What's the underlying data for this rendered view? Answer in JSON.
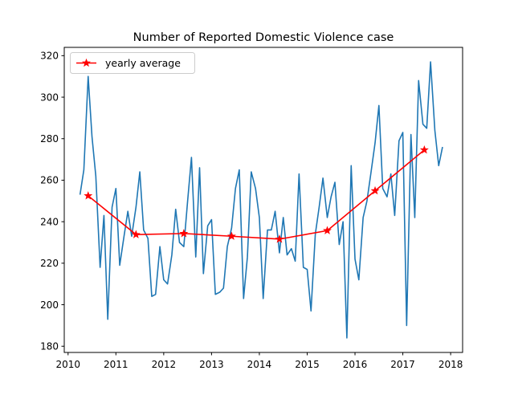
{
  "chart_data": {
    "type": "line",
    "title": "Number of Reported Domestic Violence case",
    "xlabel": "",
    "ylabel": "",
    "xlim": [
      2009.92,
      2018.25
    ],
    "ylim": [
      177,
      324
    ],
    "x_ticks": [
      2010,
      2011,
      2012,
      2013,
      2014,
      2015,
      2016,
      2017,
      2018
    ],
    "y_ticks": [
      180,
      200,
      220,
      240,
      260,
      280,
      300,
      320
    ],
    "legend": {
      "position": "top-left",
      "entries": [
        "yearly average"
      ]
    },
    "grid": false,
    "series": [
      {
        "color": "#1f77b4",
        "marker": "none",
        "points": [
          [
            2010.25,
            253
          ],
          [
            2010.33,
            265
          ],
          [
            2010.42,
            310
          ],
          [
            2010.5,
            281
          ],
          [
            2010.58,
            262
          ],
          [
            2010.67,
            218
          ],
          [
            2010.75,
            243
          ],
          [
            2010.83,
            193
          ],
          [
            2010.92,
            247
          ],
          [
            2011.0,
            256
          ],
          [
            2011.08,
            219
          ],
          [
            2011.17,
            233
          ],
          [
            2011.25,
            245
          ],
          [
            2011.33,
            233
          ],
          [
            2011.42,
            247
          ],
          [
            2011.5,
            264
          ],
          [
            2011.58,
            236
          ],
          [
            2011.67,
            232
          ],
          [
            2011.75,
            204
          ],
          [
            2011.83,
            205
          ],
          [
            2011.92,
            228
          ],
          [
            2012.0,
            212
          ],
          [
            2012.08,
            210
          ],
          [
            2012.17,
            224
          ],
          [
            2012.25,
            246
          ],
          [
            2012.33,
            230
          ],
          [
            2012.42,
            228
          ],
          [
            2012.5,
            250
          ],
          [
            2012.58,
            271
          ],
          [
            2012.67,
            223
          ],
          [
            2012.75,
            266
          ],
          [
            2012.83,
            215
          ],
          [
            2012.92,
            238
          ],
          [
            2013.0,
            241
          ],
          [
            2013.08,
            205
          ],
          [
            2013.17,
            206
          ],
          [
            2013.25,
            208
          ],
          [
            2013.33,
            228
          ],
          [
            2013.42,
            237
          ],
          [
            2013.5,
            256
          ],
          [
            2013.58,
            265
          ],
          [
            2013.67,
            203
          ],
          [
            2013.75,
            223
          ],
          [
            2013.83,
            264
          ],
          [
            2013.92,
            256
          ],
          [
            2014.0,
            242
          ],
          [
            2014.08,
            203
          ],
          [
            2014.17,
            236
          ],
          [
            2014.25,
            236
          ],
          [
            2014.33,
            245
          ],
          [
            2014.42,
            225
          ],
          [
            2014.5,
            242
          ],
          [
            2014.58,
            224
          ],
          [
            2014.67,
            227
          ],
          [
            2014.75,
            221
          ],
          [
            2014.83,
            263
          ],
          [
            2014.92,
            218
          ],
          [
            2015.0,
            217
          ],
          [
            2015.08,
            197
          ],
          [
            2015.17,
            234
          ],
          [
            2015.25,
            247
          ],
          [
            2015.33,
            261
          ],
          [
            2015.42,
            242
          ],
          [
            2015.5,
            252
          ],
          [
            2015.58,
            259
          ],
          [
            2015.67,
            229
          ],
          [
            2015.75,
            240
          ],
          [
            2015.83,
            184
          ],
          [
            2015.92,
            267
          ],
          [
            2016.0,
            222
          ],
          [
            2016.08,
            212
          ],
          [
            2016.17,
            242
          ],
          [
            2016.25,
            250
          ],
          [
            2016.33,
            263
          ],
          [
            2016.42,
            278
          ],
          [
            2016.5,
            296
          ],
          [
            2016.58,
            256
          ],
          [
            2016.67,
            252
          ],
          [
            2016.75,
            263
          ],
          [
            2016.83,
            243
          ],
          [
            2016.92,
            279
          ],
          [
            2017.0,
            283
          ],
          [
            2017.08,
            190
          ],
          [
            2017.17,
            282
          ],
          [
            2017.25,
            242
          ],
          [
            2017.33,
            308
          ],
          [
            2017.42,
            287
          ],
          [
            2017.5,
            285
          ],
          [
            2017.58,
            317
          ],
          [
            2017.67,
            284
          ],
          [
            2017.75,
            267
          ],
          [
            2017.83,
            276
          ]
        ]
      },
      {
        "name": "yearly average",
        "color": "#ff0000",
        "marker": "star",
        "points": [
          [
            2010.42,
            252.5
          ],
          [
            2011.42,
            233.8
          ],
          [
            2012.42,
            234.3
          ],
          [
            2013.42,
            233.0
          ],
          [
            2014.42,
            231.6
          ],
          [
            2015.42,
            235.7
          ],
          [
            2016.42,
            254.9
          ],
          [
            2017.45,
            274.6
          ]
        ]
      }
    ]
  }
}
